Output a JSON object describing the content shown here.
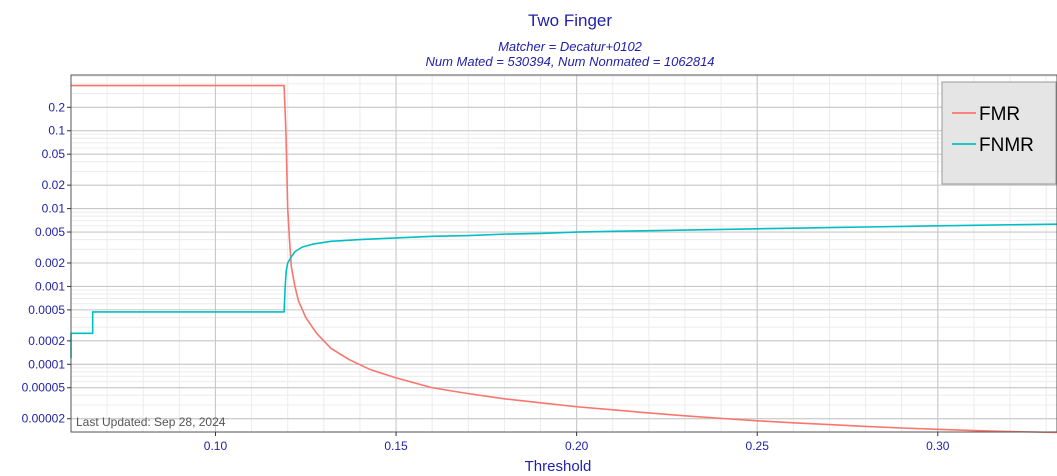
{
  "chart_data": {
    "type": "line",
    "title": "Two Finger",
    "subtitle_lines": [
      "Matcher = Decatur+0102",
      "Num Mated = 530394, Num Nonmated = 1062814"
    ],
    "xlabel": "Threshold",
    "ylabel": "",
    "x_scale": "linear",
    "y_scale": "log",
    "xlim": [
      0.06,
      0.333
    ],
    "ylim": [
      1.35e-05,
      0.52
    ],
    "x_ticks": [
      0.1,
      0.15,
      0.2,
      0.25,
      0.3
    ],
    "x_tick_labels": [
      "0.10",
      "0.15",
      "0.20",
      "0.25",
      "0.30"
    ],
    "y_ticks": [
      0.2,
      0.1,
      0.05,
      0.02,
      0.01,
      0.005,
      0.002,
      0.001,
      0.0005,
      0.0002,
      0.0001,
      5e-05,
      2e-05
    ],
    "y_tick_labels": [
      "0.2",
      "0.1",
      "0.05",
      "0.02",
      "0.01",
      "0.005",
      "0.002",
      "0.001",
      "0.0005",
      "0.0002",
      "0.0001",
      "0.00005",
      "0.00002"
    ],
    "grid": true,
    "legend_position": "top-right",
    "series": [
      {
        "name": "FMR",
        "color": "#f8766d",
        "x": [
          0.06,
          0.119,
          0.1195,
          0.12,
          0.1205,
          0.121,
          0.122,
          0.123,
          0.125,
          0.128,
          0.132,
          0.137,
          0.143,
          0.15,
          0.16,
          0.17,
          0.18,
          0.19,
          0.2,
          0.21,
          0.22,
          0.23,
          0.24,
          0.25,
          0.26,
          0.27,
          0.28,
          0.29,
          0.3,
          0.31,
          0.32,
          0.333
        ],
        "y": [
          0.38,
          0.38,
          0.1,
          0.01,
          0.004,
          0.0018,
          0.001,
          0.00065,
          0.0004,
          0.00025,
          0.00016,
          0.000115,
          8.5e-05,
          6.7e-05,
          5e-05,
          4.2e-05,
          3.6e-05,
          3.2e-05,
          2.85e-05,
          2.6e-05,
          2.37e-05,
          2.18e-05,
          2.02e-05,
          1.88e-05,
          1.77e-05,
          1.68e-05,
          1.59e-05,
          1.52e-05,
          1.46e-05,
          1.41e-05,
          1.37e-05,
          1.33e-05
        ]
      },
      {
        "name": "FNMR",
        "color": "#00bfc4",
        "x": [
          0.06,
          0.06,
          0.066,
          0.066,
          0.119,
          0.1193,
          0.1196,
          0.12,
          0.121,
          0.122,
          0.124,
          0.127,
          0.132,
          0.14,
          0.15,
          0.16,
          0.17,
          0.18,
          0.19,
          0.2,
          0.21,
          0.22,
          0.23,
          0.24,
          0.25,
          0.26,
          0.27,
          0.28,
          0.29,
          0.3,
          0.31,
          0.32,
          0.333
        ],
        "y": [
          0.00012,
          0.00025,
          0.00025,
          0.00047,
          0.00047,
          0.001,
          0.0016,
          0.002,
          0.0024,
          0.0028,
          0.0032,
          0.0035,
          0.0038,
          0.004,
          0.0042,
          0.0044,
          0.0045,
          0.0047,
          0.0048,
          0.005,
          0.0051,
          0.0052,
          0.0053,
          0.0054,
          0.0055,
          0.0056,
          0.0057,
          0.0058,
          0.0059,
          0.006,
          0.0061,
          0.0062,
          0.0063
        ]
      }
    ],
    "annotation": "Last Updated: Sep 28, 2024"
  }
}
